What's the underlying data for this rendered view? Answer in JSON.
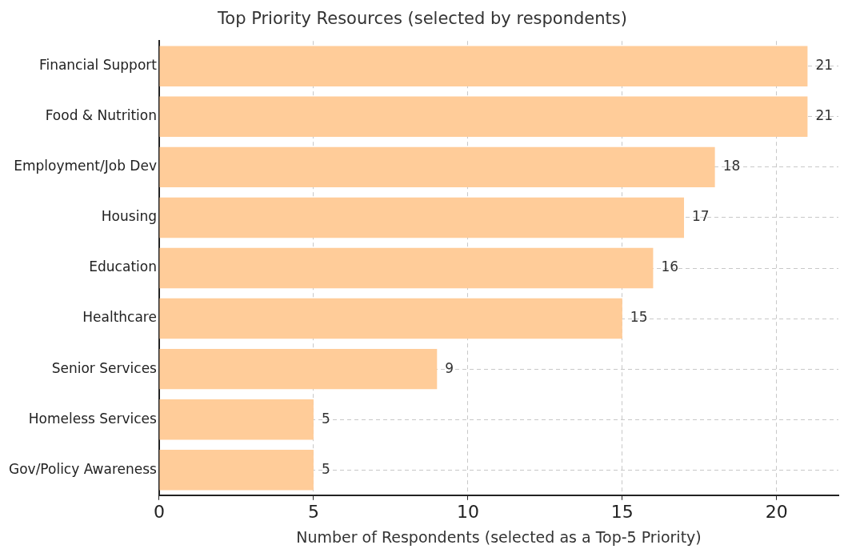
{
  "chart_data": {
    "type": "bar",
    "orientation": "horizontal",
    "title": "Top Priority Resources (selected by respondents)",
    "xlabel": "Number of Respondents (selected as a Top-5 Priority)",
    "categories": [
      "Financial Support",
      "Food & Nutrition",
      "Employment/Job Dev",
      "Housing",
      "Education",
      "Healthcare",
      "Senior Services",
      "Homeless Services",
      "Gov/Policy Awareness"
    ],
    "values": [
      21,
      21,
      18,
      17,
      16,
      15,
      9,
      5,
      5
    ],
    "color": "#ffcc99",
    "xlim": [
      0,
      22
    ],
    "xticks": [
      0,
      5,
      10,
      15,
      20
    ],
    "grid": true,
    "data_labels": true
  }
}
